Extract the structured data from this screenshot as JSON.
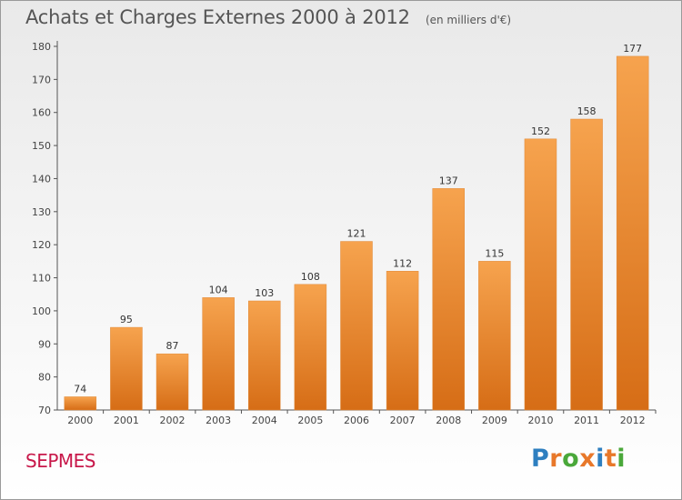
{
  "header": {
    "title": "Achats et Charges Externes 2000 à 2012",
    "subtitle": "(en milliers d'€)"
  },
  "footer": {
    "commune": "SEPMES",
    "logo_text": "Proxiti"
  },
  "colors": {
    "bar_light": "#f6a34e",
    "bar_dark": "#d66d16",
    "commune": "#c8184a",
    "logo_letters": [
      "#2e7fc0",
      "#e8782a",
      "#4aa83a",
      "#e8782a",
      "#2e7fc0",
      "#e8782a",
      "#4aa83a"
    ]
  },
  "chart_data": {
    "type": "bar",
    "categories": [
      "2000",
      "2001",
      "2002",
      "2003",
      "2004",
      "2005",
      "2006",
      "2007",
      "2008",
      "2009",
      "2010",
      "2011",
      "2012"
    ],
    "values": [
      74,
      95,
      87,
      104,
      103,
      108,
      121,
      112,
      137,
      115,
      152,
      158,
      177
    ],
    "ylim": [
      70,
      180
    ],
    "yticks": [
      70,
      80,
      90,
      100,
      110,
      120,
      130,
      140,
      150,
      160,
      170,
      180
    ],
    "grid": false
  }
}
